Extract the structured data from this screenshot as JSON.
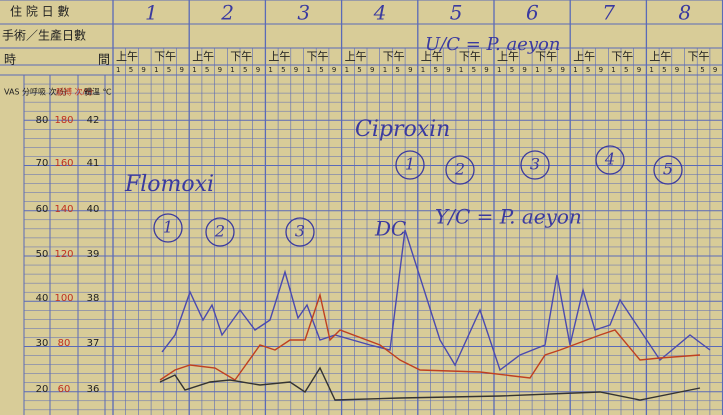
{
  "header": {
    "days_label": "住 院 日 數",
    "surgery_label": "手術／生產日數",
    "time_label": "時",
    "time_label_2": "間"
  },
  "days": [
    "1",
    "2",
    "3",
    "4",
    "5",
    "6",
    "7",
    "8"
  ],
  "am": "上午",
  "pm": "下午",
  "hours": [
    "1",
    "5",
    "9",
    "1",
    "5",
    "9"
  ],
  "scale_headers": {
    "vas": "VAS 分",
    "resp": "呼吸 次/分",
    "pulse": "脈搏 次/分",
    "temp": "體溫 ℃"
  },
  "resp_scale": [
    "80",
    "70",
    "60",
    "50",
    "40",
    "30",
    "20"
  ],
  "pulse_scale": [
    "180",
    "160",
    "140",
    "120",
    "100",
    "80",
    "60"
  ],
  "temp_scale": [
    "42",
    "41",
    "40",
    "39",
    "38",
    "37",
    "36"
  ],
  "notes": {
    "antibiotic_1": "Flomoxi",
    "antibiotic_2": "Ciproxin",
    "urine_culture": "U/C = P. aeyon",
    "culture_2": "Y/C = P. aeyon",
    "dc": "DC",
    "circles": [
      "1",
      "2",
      "3",
      "1",
      "2",
      "3",
      "4",
      "5"
    ]
  }
}
